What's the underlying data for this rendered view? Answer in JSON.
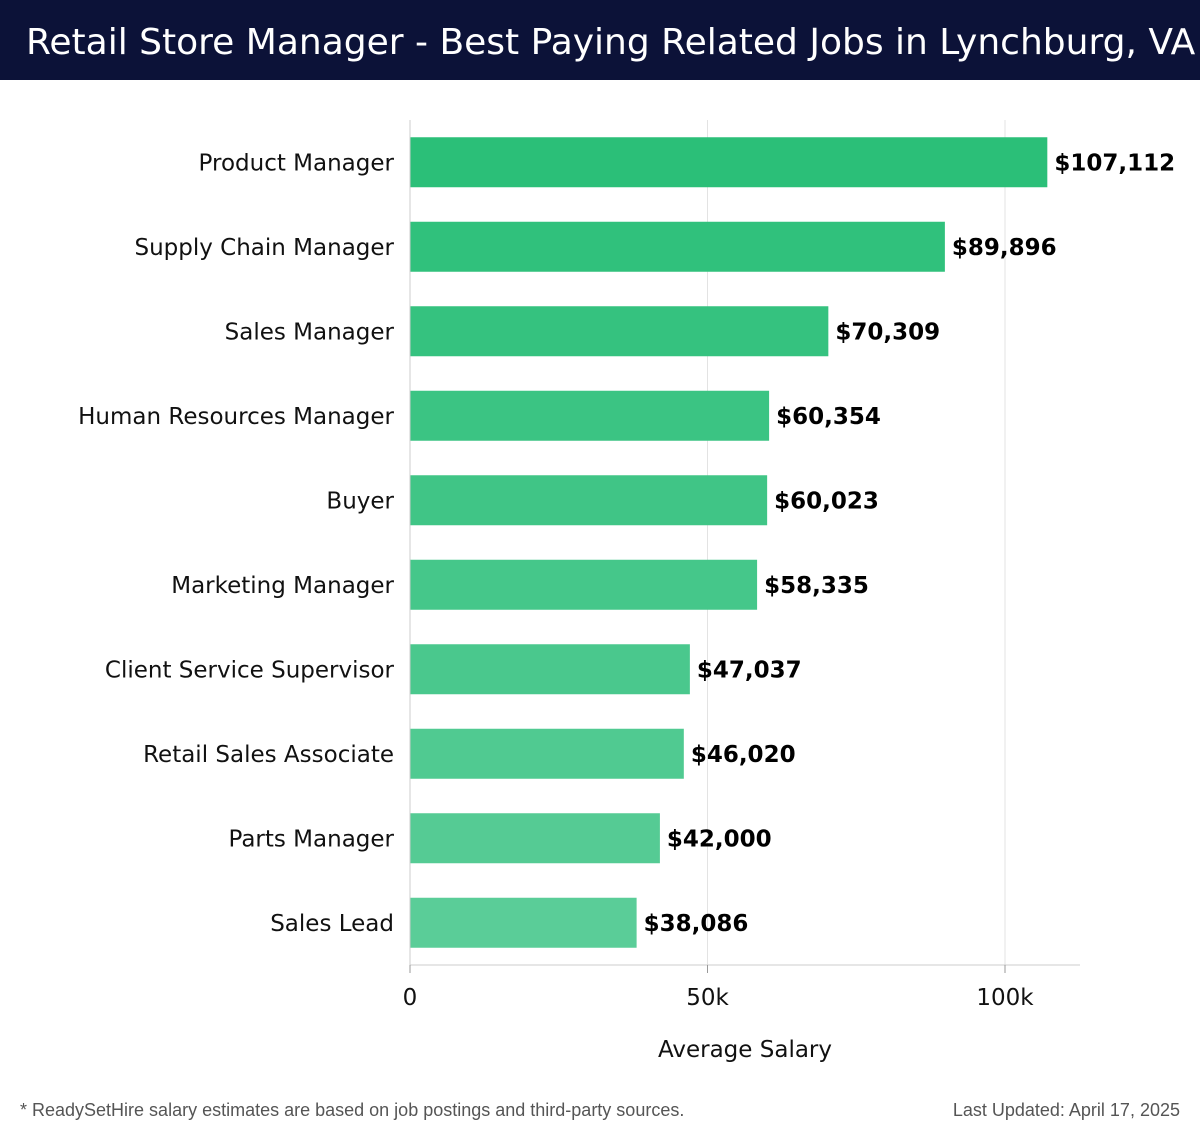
{
  "header": {
    "title": "Retail Store Manager - Best Paying Related Jobs in Lynchburg, VA"
  },
  "colors": {
    "bar_top": "#2bbf78",
    "bar_bottom": "#5acd98",
    "header_bg": "#0c1238"
  },
  "chart_data": {
    "type": "bar",
    "orientation": "horizontal",
    "categories": [
      "Product Manager",
      "Supply Chain Manager",
      "Sales Manager",
      "Human Resources Manager",
      "Buyer",
      "Marketing Manager",
      "Client Service Supervisor",
      "Retail Sales Associate",
      "Parts Manager",
      "Sales Lead"
    ],
    "values": [
      107112,
      89896,
      70309,
      60354,
      60023,
      58335,
      47037,
      46020,
      42000,
      38086
    ],
    "value_labels": [
      "$107,112",
      "$89,896",
      "$70,309",
      "$60,354",
      "$60,023",
      "$58,335",
      "$47,037",
      "$46,020",
      "$42,000",
      "$38,086"
    ],
    "xlabel": "Average Salary",
    "ylabel": "",
    "xlim": [
      0,
      113000
    ],
    "xticks": [
      0,
      50000,
      100000
    ],
    "xtick_labels": [
      "0",
      "50k",
      "100k"
    ],
    "grid": "vertical"
  },
  "footer": {
    "note": "* ReadySetHire salary estimates are based on job postings and third-party sources.",
    "updated": "Last Updated: April 17, 2025"
  }
}
